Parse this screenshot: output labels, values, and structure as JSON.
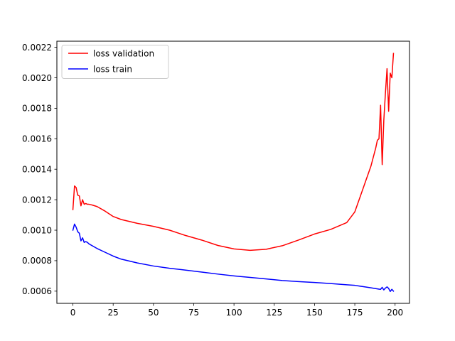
{
  "chart_data": {
    "type": "line",
    "title": "",
    "xlabel": "",
    "ylabel": "",
    "xlim": [
      -9.95,
      208.95
    ],
    "ylim": [
      0.00052,
      0.00224
    ],
    "xticks": [
      0,
      25,
      50,
      75,
      100,
      125,
      150,
      175,
      200
    ],
    "xtick_labels": [
      "0",
      "25",
      "50",
      "75",
      "100",
      "125",
      "150",
      "175",
      "200"
    ],
    "yticks": [
      0.0006,
      0.0008,
      0.001,
      0.0012,
      0.0014,
      0.0016,
      0.0018,
      0.002,
      0.0022
    ],
    "ytick_labels": [
      "0.0006",
      "0.0008",
      "0.0010",
      "0.0012",
      "0.0014",
      "0.0016",
      "0.0018",
      "0.0020",
      "0.0022"
    ],
    "grid": false,
    "legend": {
      "placement": "upper-left",
      "entries": [
        "loss validation",
        "loss train"
      ]
    },
    "series": [
      {
        "name": "loss validation",
        "color": "#ff0000",
        "points": [
          [
            0,
            0.001135
          ],
          [
            1,
            0.00129
          ],
          [
            2,
            0.00128
          ],
          [
            3,
            0.00123
          ],
          [
            4,
            0.001225
          ],
          [
            5,
            0.00116
          ],
          [
            6,
            0.0012
          ],
          [
            7,
            0.00117
          ],
          [
            8,
            0.001175
          ],
          [
            9,
            0.00117
          ],
          [
            10,
            0.00117
          ],
          [
            12,
            0.001165
          ],
          [
            15,
            0.001155
          ],
          [
            20,
            0.001125
          ],
          [
            25,
            0.00109
          ],
          [
            30,
            0.00107
          ],
          [
            40,
            0.001045
          ],
          [
            50,
            0.001025
          ],
          [
            60,
            0.001
          ],
          [
            70,
            0.000965
          ],
          [
            80,
            0.000935
          ],
          [
            90,
            0.0009
          ],
          [
            100,
            0.000877
          ],
          [
            110,
            0.000868
          ],
          [
            120,
            0.000875
          ],
          [
            130,
            0.000898
          ],
          [
            140,
            0.000935
          ],
          [
            150,
            0.000975
          ],
          [
            160,
            0.001005
          ],
          [
            170,
            0.00105
          ],
          [
            175,
            0.00112
          ],
          [
            180,
            0.00127
          ],
          [
            185,
            0.00142
          ],
          [
            188,
            0.00154
          ],
          [
            189,
            0.00159
          ],
          [
            190,
            0.0016
          ],
          [
            191,
            0.00182
          ],
          [
            192,
            0.00143
          ],
          [
            193,
            0.00172
          ],
          [
            194,
            0.0019
          ],
          [
            195,
            0.00206
          ],
          [
            196,
            0.00178
          ],
          [
            197,
            0.00203
          ],
          [
            198,
            0.002
          ],
          [
            199,
            0.00216
          ]
        ]
      },
      {
        "name": "loss train",
        "color": "#0000ff",
        "points": [
          [
            0,
            0.001
          ],
          [
            1,
            0.00104
          ],
          [
            2,
            0.00102
          ],
          [
            3,
            0.00099
          ],
          [
            4,
            0.00098
          ],
          [
            5,
            0.00093
          ],
          [
            6,
            0.00095
          ],
          [
            7,
            0.00092
          ],
          [
            8,
            0.000925
          ],
          [
            9,
            0.00092
          ],
          [
            10,
            0.00091
          ],
          [
            15,
            0.00088
          ],
          [
            20,
            0.000855
          ],
          [
            25,
            0.00083
          ],
          [
            30,
            0.00081
          ],
          [
            40,
            0.000785
          ],
          [
            50,
            0.000765
          ],
          [
            60,
            0.00075
          ],
          [
            70,
            0.000738
          ],
          [
            80,
            0.000725
          ],
          [
            90,
            0.000712
          ],
          [
            100,
            0.0007
          ],
          [
            110,
            0.00069
          ],
          [
            120,
            0.00068
          ],
          [
            130,
            0.00067
          ],
          [
            140,
            0.000663
          ],
          [
            150,
            0.000657
          ],
          [
            160,
            0.00065
          ],
          [
            170,
            0.000642
          ],
          [
            175,
            0.000638
          ],
          [
            180,
            0.00063
          ],
          [
            185,
            0.000622
          ],
          [
            190,
            0.000613
          ],
          [
            191,
            0.000612
          ],
          [
            192,
            0.000625
          ],
          [
            193,
            0.000608
          ],
          [
            194,
            0.00062
          ],
          [
            195,
            0.000628
          ],
          [
            196,
            0.000618
          ],
          [
            197,
            0.000598
          ],
          [
            198,
            0.000612
          ],
          [
            199,
            0.0006
          ]
        ]
      }
    ]
  }
}
